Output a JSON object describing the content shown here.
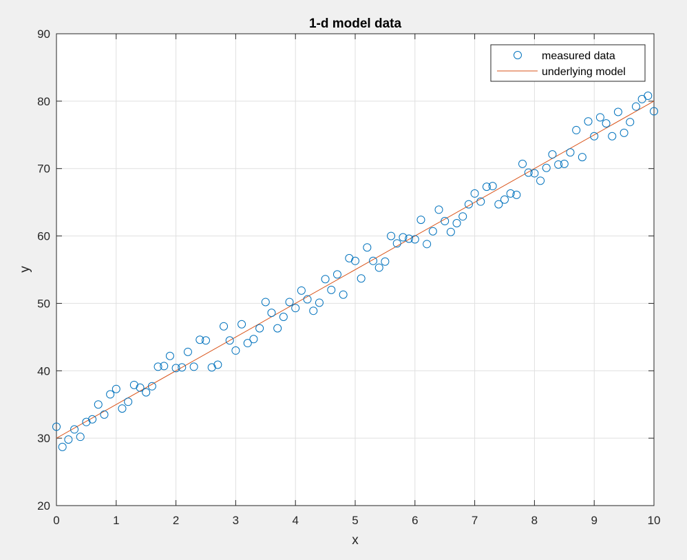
{
  "chart_data": {
    "type": "scatter",
    "title": "1-d model data",
    "xlabel": "x",
    "ylabel": "y",
    "xlim": [
      0,
      10
    ],
    "ylim": [
      20,
      90
    ],
    "xticks": [
      0,
      1,
      2,
      3,
      4,
      5,
      6,
      7,
      8,
      9,
      10
    ],
    "yticks": [
      20,
      30,
      40,
      50,
      60,
      70,
      80,
      90
    ],
    "grid": true,
    "legend_position": "top-right",
    "colors": {
      "measured": "#0072bd",
      "model": "#d95319",
      "grid": "#dfdfdf",
      "axes": "#262626",
      "background": "#f0f0f0",
      "plot_area": "#ffffff"
    },
    "series": [
      {
        "name": "measured data",
        "marker": "circle",
        "x": [
          0.0,
          0.1,
          0.2,
          0.3,
          0.4,
          0.5,
          0.6,
          0.7,
          0.8,
          0.9,
          1.0,
          1.1,
          1.2,
          1.3,
          1.4,
          1.5,
          1.6,
          1.7,
          1.8,
          1.9,
          2.0,
          2.1,
          2.2,
          2.3,
          2.4,
          2.5,
          2.6,
          2.7,
          2.8,
          2.9,
          3.0,
          3.1,
          3.2,
          3.3,
          3.4,
          3.5,
          3.6,
          3.7,
          3.8,
          3.9,
          4.0,
          4.1,
          4.2,
          4.3,
          4.4,
          4.5,
          4.6,
          4.7,
          4.8,
          4.9,
          5.0,
          5.1,
          5.2,
          5.3,
          5.4,
          5.5,
          5.6,
          5.7,
          5.8,
          5.9,
          6.0,
          6.1,
          6.2,
          6.3,
          6.4,
          6.5,
          6.6,
          6.7,
          6.8,
          6.9,
          7.0,
          7.1,
          7.2,
          7.3,
          7.4,
          7.5,
          7.6,
          7.7,
          7.8,
          7.9,
          8.0,
          8.1,
          8.2,
          8.3,
          8.4,
          8.5,
          8.6,
          8.7,
          8.8,
          8.9,
          9.0,
          9.1,
          9.2,
          9.3,
          9.4,
          9.5,
          9.6,
          9.7,
          9.8,
          9.9,
          10.0
        ],
        "y": [
          31.7,
          28.7,
          29.8,
          31.3,
          30.2,
          32.4,
          32.8,
          35.0,
          33.5,
          36.5,
          37.3,
          34.4,
          35.4,
          37.9,
          37.5,
          36.8,
          37.7,
          40.6,
          40.7,
          42.2,
          40.4,
          40.5,
          42.8,
          40.6,
          44.6,
          44.5,
          40.5,
          40.9,
          46.6,
          44.5,
          43.0,
          46.9,
          44.1,
          44.7,
          46.3,
          50.2,
          48.6,
          46.3,
          48.0,
          50.2,
          49.3,
          51.9,
          50.6,
          48.9,
          50.1,
          53.6,
          52.0,
          54.3,
          51.3,
          56.7,
          56.3,
          53.7,
          58.3,
          56.3,
          55.3,
          56.2,
          60.0,
          58.9,
          59.8,
          59.6,
          59.5,
          62.4,
          58.8,
          60.7,
          63.9,
          62.2,
          60.6,
          61.9,
          62.9,
          64.7,
          66.3,
          65.1,
          67.3,
          67.4,
          64.7,
          65.4,
          66.3,
          66.1,
          70.7,
          69.4,
          69.3,
          68.2,
          70.1,
          72.1,
          70.6,
          70.7,
          72.4,
          75.7,
          71.7,
          77.0,
          74.8,
          77.6,
          76.7,
          74.8,
          78.4,
          75.3,
          76.9,
          79.2,
          80.3,
          80.8,
          78.5
        ]
      },
      {
        "name": "underlying model",
        "marker": "line",
        "x": [
          0,
          10
        ],
        "y": [
          30,
          80
        ]
      }
    ]
  }
}
